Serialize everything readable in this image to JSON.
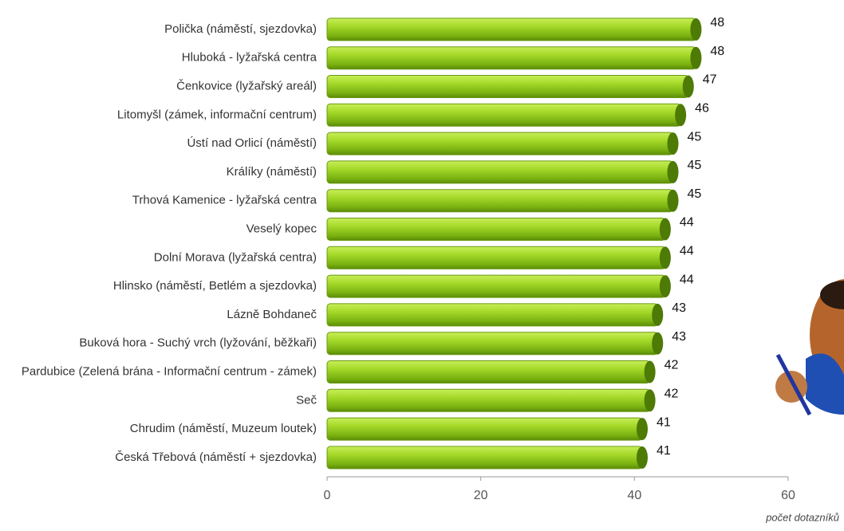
{
  "chart_data": {
    "type": "bar",
    "orientation": "horizontal",
    "categories": [
      "Polička (náměstí, sjezdovka)",
      "Hluboká - lyžařská centra",
      "Čenkovice (lyžařský areál)",
      "Litomyšl (zámek, informační centrum)",
      "Ústí nad Orlicí (náměstí)",
      "Králíky (náměstí)",
      "Trhová Kamenice - lyžařská centra",
      "Veselý kopec",
      "Dolní Morava (lyžařská centra)",
      "Hlinsko (náměstí, Betlém a sjezdovka)",
      "Lázně Bohdaneč",
      "Buková hora - Suchý vrch (lyžování, běžkaři)",
      "Pardubice (Zelená brána - Informační centrum - zámek)",
      "Seč",
      "Chrudim (náměstí, Muzeum loutek)",
      "Česká Třebová (náměstí + sjezdovka)"
    ],
    "values": [
      48,
      48,
      47,
      46,
      45,
      45,
      45,
      44,
      44,
      44,
      43,
      43,
      42,
      42,
      41,
      41
    ],
    "color": "#8cc814",
    "xlim": [
      0,
      60
    ],
    "xticks": [
      0,
      20,
      40,
      60
    ],
    "xlabel": "počet dotazníků",
    "grid": false
  }
}
